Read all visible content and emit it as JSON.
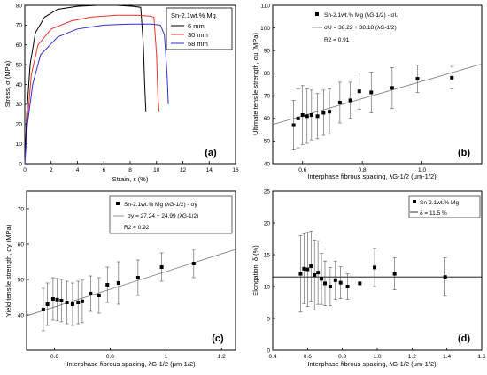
{
  "colors": {
    "black": "#000000",
    "red": "#e8332a",
    "blue": "#2f2fcf",
    "fit": "#7a7a7a",
    "frame": "#000000"
  },
  "chart_data": [
    {
      "panel_label": "(a)",
      "type": "line",
      "xlabel": "Strain, ε (%)",
      "ylabel": "Stress, σ (MPa)",
      "xlim": [
        0,
        16
      ],
      "ylim": [
        0,
        80
      ],
      "xticks": [
        "0",
        "2",
        "4",
        "6",
        "8",
        "10",
        "12",
        "14",
        "16"
      ],
      "yticks": [
        "0",
        "10",
        "20",
        "30",
        "40",
        "50",
        "60",
        "70",
        "80"
      ],
      "xtick_values": [
        0,
        2,
        4,
        6,
        8,
        10,
        12,
        14,
        16
      ],
      "ytick_values": [
        0,
        10,
        20,
        30,
        40,
        50,
        60,
        70,
        80
      ],
      "legend_title": "Sn-2.1wt.% Mg",
      "series": [
        {
          "name": "6 mm",
          "color": "#000000",
          "x": [
            0,
            0.15,
            0.4,
            0.8,
            1.5,
            2.5,
            4,
            5.5,
            7,
            8.2,
            8.8,
            9.0,
            9.1,
            9.2
          ],
          "y": [
            0,
            25,
            50,
            66,
            74,
            78,
            79.5,
            80,
            80,
            79.5,
            79,
            60,
            40,
            26
          ]
        },
        {
          "name": "30 mm",
          "color": "#e8332a",
          "x": [
            0,
            0.2,
            0.5,
            1,
            2,
            3.5,
            5,
            7,
            8.5,
            9.5,
            9.8,
            10.0,
            10.1,
            10.2
          ],
          "y": [
            0,
            22,
            45,
            60,
            68,
            72,
            74,
            75,
            75,
            74.5,
            74,
            55,
            35,
            26
          ]
        },
        {
          "name": "58 mm",
          "color": "#2f2fcf",
          "x": [
            0,
            0.2,
            0.6,
            1.2,
            2.5,
            4,
            6,
            8,
            9.6,
            10.3,
            10.6,
            10.8,
            10.9
          ],
          "y": [
            0,
            20,
            40,
            55,
            64,
            68,
            70,
            70.5,
            70.5,
            70,
            65,
            45,
            30
          ]
        }
      ]
    },
    {
      "panel_label": "(b)",
      "type": "scatter",
      "xlabel": "Interphase fibrous spacing, λG-1/2 (μm-1/2)",
      "ylabel": "Ultimate tensile strength, σu (MPa)",
      "xlim": [
        0.5,
        1.2
      ],
      "ylim": [
        40,
        110
      ],
      "xticks": [
        "0.6",
        "0.8",
        "1.0"
      ],
      "xtick_values": [
        0.6,
        0.8,
        1.0
      ],
      "yticks": [
        "40",
        "50",
        "60",
        "70",
        "80",
        "90",
        "100",
        "110"
      ],
      "ytick_values": [
        40,
        50,
        60,
        70,
        80,
        90,
        100,
        110
      ],
      "legend": [
        "Sn-2.1wt.% Mg (λG-1/2) - σU",
        "σU = 38.22 + 38.18 (λG-1/2)",
        "R2 = 0.91"
      ],
      "points": {
        "x": [
          0.57,
          0.585,
          0.6,
          0.615,
          0.63,
          0.65,
          0.67,
          0.69,
          0.725,
          0.76,
          0.79,
          0.83,
          0.9,
          0.985,
          1.1
        ],
        "y": [
          57,
          60,
          61.5,
          61,
          61.5,
          61,
          62.5,
          63,
          67,
          68,
          72,
          71.5,
          73.5,
          77.5,
          78
        ],
        "err": [
          11,
          13,
          13,
          12,
          11,
          10,
          10,
          10,
          9,
          8,
          8,
          9,
          9,
          6,
          5
        ]
      },
      "fit": {
        "intercept": 38.22,
        "slope": 38.18
      }
    },
    {
      "panel_label": "(c)",
      "type": "scatter",
      "xlabel": "Interphase fibrous spacing, λG-1/2 (μm-1/2)",
      "ylabel": "Yield tensile strength, σy (MPa)",
      "xlim": [
        0.5,
        1.25
      ],
      "ylim": [
        30,
        75
      ],
      "xticks": [
        "0.6",
        "0.8",
        "1",
        "1.2"
      ],
      "xtick_values": [
        0.6,
        0.8,
        1.0,
        1.2
      ],
      "yticks": [
        "40",
        "50",
        "60",
        "70"
      ],
      "ytick_values": [
        40,
        50,
        60,
        70
      ],
      "legend": [
        "Sn-2.1wt.% Mg (λG-1/2) - σy",
        "σy = 27.24 + 24.99 (λG-1/2)",
        "R2 = 0.92"
      ],
      "points": {
        "x": [
          0.56,
          0.575,
          0.595,
          0.61,
          0.625,
          0.645,
          0.665,
          0.685,
          0.7,
          0.73,
          0.76,
          0.79,
          0.83,
          0.9,
          0.985,
          1.1
        ],
        "y": [
          41.5,
          43,
          44.5,
          44.3,
          44,
          43.5,
          43,
          43.5,
          43.8,
          46,
          45.5,
          48.5,
          49,
          50.5,
          53.5,
          54.5
        ],
        "err": [
          6,
          6,
          6,
          6,
          6,
          6,
          6,
          6,
          6,
          5,
          5,
          5,
          6,
          5,
          4,
          4
        ]
      },
      "fit": {
        "intercept": 27.24,
        "slope": 24.99
      }
    },
    {
      "panel_label": "(d)",
      "type": "scatter",
      "xlabel": "Interphase fibrous spacing, λG-1/2 (μm-1/2)",
      "ylabel": "Elongation, δ (%)",
      "xlim": [
        0.4,
        1.6
      ],
      "ylim": [
        0,
        25
      ],
      "xticks": [
        "0.4",
        "0.6",
        "0.8",
        "1.0",
        "1.2",
        "1.4",
        "1.6"
      ],
      "xtick_values": [
        0.4,
        0.6,
        0.8,
        1.0,
        1.2,
        1.4,
        1.6
      ],
      "yticks": [
        "0",
        "5",
        "10",
        "15",
        "20",
        "25"
      ],
      "ytick_values": [
        0,
        5,
        10,
        15,
        20,
        25
      ],
      "legend": [
        "Sn-2.1wt.% Mg",
        "δ = 11.5 %"
      ],
      "points": {
        "x": [
          0.56,
          0.58,
          0.6,
          0.62,
          0.64,
          0.66,
          0.68,
          0.7,
          0.73,
          0.76,
          0.79,
          0.83,
          0.9,
          0.985,
          1.1,
          1.39
        ],
        "y": [
          12,
          12.8,
          12.7,
          13.2,
          11.8,
          12.2,
          11.2,
          10.5,
          10,
          11,
          10.6,
          10,
          10.5,
          13,
          12,
          11.5
        ],
        "err": [
          6,
          5.5,
          5.8,
          5.5,
          5.5,
          5,
          4,
          3.5,
          3,
          3,
          2.5,
          2,
          0,
          3,
          2.5,
          3
        ]
      },
      "hline": 11.5
    }
  ]
}
